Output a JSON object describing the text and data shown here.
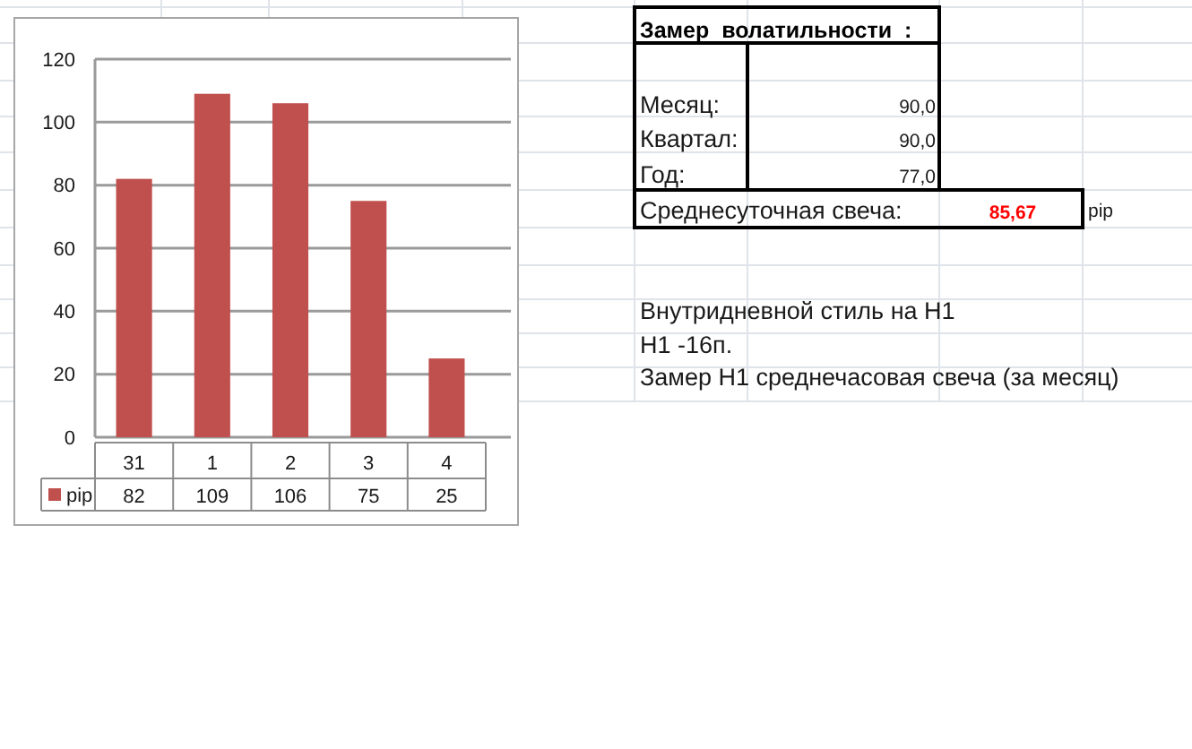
{
  "chart_data": [
    {
      "type": "bar",
      "categories": [
        "31",
        "1",
        "2",
        "3",
        "4"
      ],
      "series": [
        {
          "name": "pip",
          "color": "#c0504d",
          "values": [
            82,
            109,
            106,
            75,
            25
          ]
        }
      ],
      "ylim": [
        0,
        120
      ],
      "yticks": [
        0,
        20,
        40,
        60,
        80,
        100,
        120
      ],
      "grid": "y",
      "legend": "bottom left",
      "data_labels": true
    },
    {
      "type": "other",
      "title": "Замер  волатильности  :",
      "annotations": [
        "Месяц:",
        "90,0",
        "Квартал:",
        "90,0",
        "Год:",
        "77,0",
        "Среднесуточная свеча:",
        "85,67",
        "pip",
        "Внутридневной стиль на H1",
        "H1 -16п.",
        "Замер H1 среднечасовая свеча (за месяц)"
      ]
    }
  ]
}
